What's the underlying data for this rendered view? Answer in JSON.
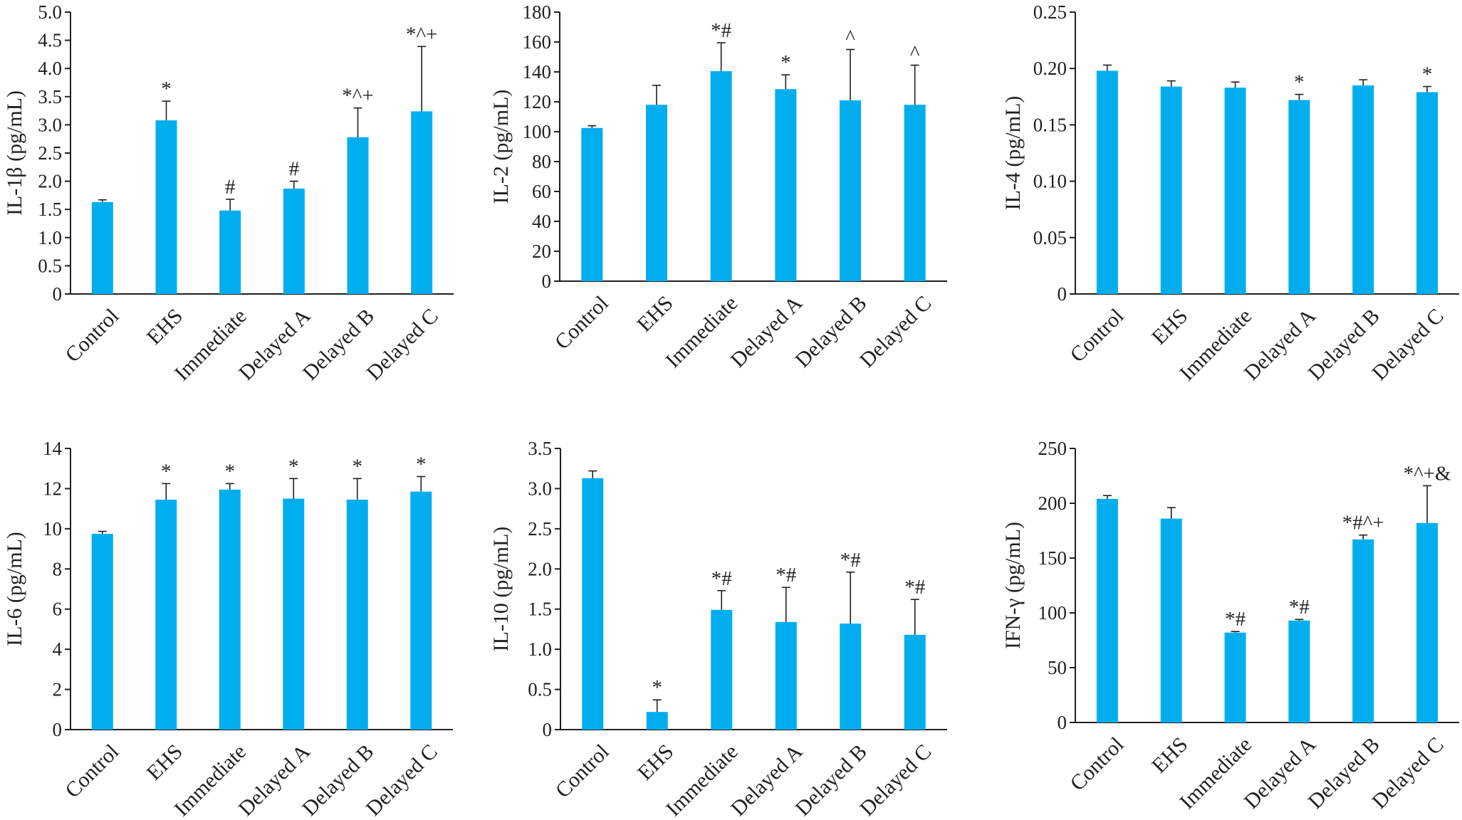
{
  "colors": {
    "bar": "#00aeef",
    "axis": "#231f20",
    "text": "#231f20"
  },
  "chart_data": [
    {
      "type": "bar",
      "ylabel": "IL-1β (pg/mL)",
      "categories": [
        "Control",
        "EHS",
        "Immediate",
        "Delayed A",
        "Delayed B",
        "Delayed C"
      ],
      "values": [
        1.63,
        3.08,
        1.48,
        1.87,
        2.78,
        3.24
      ],
      "errors": [
        0.04,
        0.34,
        0.2,
        0.13,
        0.52,
        1.15
      ],
      "annotations": [
        "",
        "*",
        "#",
        "#",
        "*^+",
        "*^+"
      ],
      "ylim": [
        0,
        5.0
      ],
      "yticks": [
        "0",
        "0.5",
        "1.0",
        "1.5",
        "2.0",
        "2.5",
        "3.0",
        "3.5",
        "4.0",
        "4.5",
        "5.0"
      ],
      "grid": false
    },
    {
      "type": "bar",
      "ylabel": "IL-2 (pg/mL)",
      "categories": [
        "Control",
        "EHS",
        "Immediate",
        "Delayed A",
        "Delayed B",
        "Delayed C"
      ],
      "values": [
        102.5,
        118,
        140.5,
        128.5,
        121,
        118
      ],
      "errors": [
        1.5,
        13,
        19,
        9.5,
        34,
        26.5
      ],
      "annotations": [
        "",
        "",
        "*#",
        "*",
        "^",
        "^"
      ],
      "ylim": [
        0,
        180
      ],
      "yticks": [
        "0",
        "20",
        "40",
        "60",
        "80",
        "100",
        "120",
        "140",
        "160",
        "180"
      ],
      "grid": false
    },
    {
      "type": "bar",
      "ylabel": "IL-4 (pg/mL)",
      "categories": [
        "Control",
        "EHS",
        "Immediate",
        "Delayed A",
        "Delayed B",
        "Delayed C"
      ],
      "values": [
        0.198,
        0.184,
        0.183,
        0.172,
        0.185,
        0.179
      ],
      "errors": [
        0.005,
        0.005,
        0.005,
        0.005,
        0.005,
        0.005
      ],
      "annotations": [
        "",
        "",
        "",
        "*",
        "",
        "*"
      ],
      "ylim": [
        0,
        0.25
      ],
      "yticks": [
        "0",
        "0.05",
        "0.10",
        "0.15",
        "0.20",
        "0.25"
      ],
      "grid": false
    },
    {
      "type": "bar",
      "ylabel": "IL-6 (pg/mL)",
      "categories": [
        "Control",
        "EHS",
        "Immediate",
        "Delayed A",
        "Delayed B",
        "Delayed C"
      ],
      "values": [
        9.75,
        11.45,
        11.95,
        11.5,
        11.45,
        11.85
      ],
      "errors": [
        0.12,
        0.8,
        0.3,
        1.0,
        1.05,
        0.75
      ],
      "annotations": [
        "",
        "*",
        "*",
        "*",
        "*",
        "*"
      ],
      "ylim": [
        0,
        14
      ],
      "yticks": [
        "0",
        "2",
        "4",
        "6",
        "8",
        "10",
        "12",
        "14"
      ],
      "grid": false
    },
    {
      "type": "bar",
      "ylabel": "IL-10 (pg/mL)",
      "categories": [
        "Control",
        "EHS",
        "Immediate",
        "Delayed A",
        "Delayed B",
        "Delayed C"
      ],
      "values": [
        3.13,
        0.22,
        1.49,
        1.34,
        1.32,
        1.18
      ],
      "errors": [
        0.09,
        0.15,
        0.24,
        0.43,
        0.64,
        0.44
      ],
      "annotations": [
        "",
        "*",
        "*#",
        "*#",
        "*#",
        "*#"
      ],
      "ylim": [
        0,
        3.5
      ],
      "yticks": [
        "0",
        "0.5",
        "1.0",
        "1.5",
        "2.0",
        "2.5",
        "3.0",
        "3.5"
      ],
      "grid": false
    },
    {
      "type": "bar",
      "ylabel": "IFN-γ (pg/mL)",
      "categories": [
        "Control",
        "EHS",
        "Immediate",
        "Delayed A",
        "Delayed B",
        "Delayed C"
      ],
      "values": [
        204,
        186,
        82,
        93,
        167,
        182
      ],
      "errors": [
        3,
        10,
        1,
        1,
        4,
        34
      ],
      "annotations": [
        "",
        "",
        "*#",
        "*#",
        "*#^+",
        "*^+&"
      ],
      "ylim": [
        0,
        250
      ],
      "yticks": [
        "0",
        "50",
        "100",
        "150",
        "200",
        "250"
      ],
      "grid": false
    }
  ]
}
